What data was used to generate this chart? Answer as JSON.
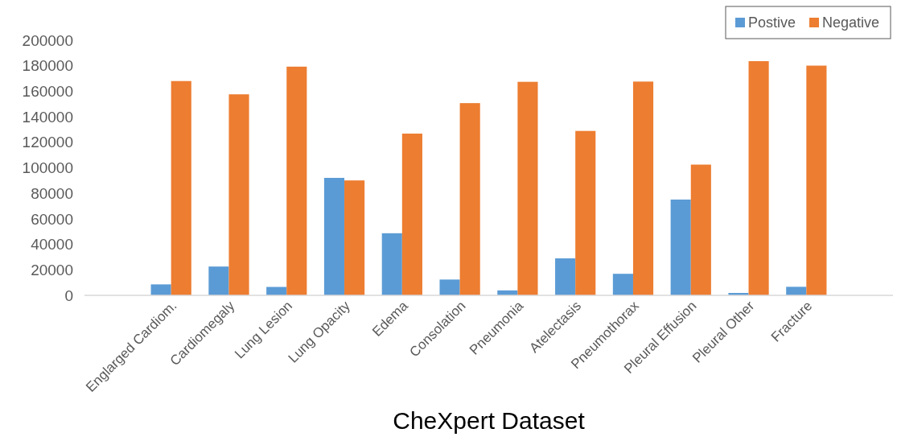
{
  "chart_data": {
    "type": "bar",
    "xlabel": "CheXpert Dataset",
    "categories": [
      null,
      "Englarged Cardiom.",
      "Cardiomegaly",
      "Lung Lesion",
      "Lung Opacity",
      "Edema",
      "Consolation",
      "Pneumonia",
      "Atelectasis",
      "Pneumothorax",
      "Pleural Effusion",
      "Pleural Other",
      "Fracture",
      null
    ],
    "series": [
      {
        "name": "Postive",
        "color": "#5b9bd5",
        "values": [
          null,
          8600,
          22600,
          6600,
          92100,
          48700,
          12400,
          3900,
          29000,
          16900,
          75100,
          1900,
          6700,
          null
        ]
      },
      {
        "name": "Negative",
        "color": "#ed7d31",
        "values": [
          null,
          168000,
          157600,
          179300,
          90100,
          126800,
          150700,
          167400,
          128900,
          167600,
          102500,
          183600,
          180100,
          null
        ]
      }
    ],
    "ylim": [
      0,
      200000
    ],
    "yticks": [
      0,
      20000,
      40000,
      60000,
      80000,
      100000,
      120000,
      140000,
      160000,
      180000,
      200000
    ],
    "grid": false,
    "legend": "top right"
  }
}
